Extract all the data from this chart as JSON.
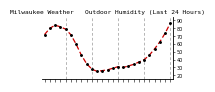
{
  "title": "Milwaukee Weather Outdoor Humidity (Last 24 Hours)",
  "y_values": [
    72,
    80,
    84,
    82,
    79,
    72,
    60,
    46,
    35,
    28,
    25,
    26,
    27,
    29,
    31,
    30,
    32,
    34,
    37,
    40,
    46,
    54,
    63,
    74,
    87
  ],
  "ylim": [
    15,
    95
  ],
  "y_ticks": [
    20,
    30,
    40,
    50,
    60,
    70,
    80,
    90
  ],
  "line_color": "#cc0000",
  "marker_color": "#000000",
  "bg_color": "#ffffff",
  "grid_color": "#999999",
  "vgrid_positions": [
    4,
    9,
    14,
    19,
    24
  ],
  "tick_fontsize": 3.5,
  "title_fontsize": 4.5,
  "title_text": "Milwaukee Weather   Outdoor Humidity (Last 24 Hours)"
}
